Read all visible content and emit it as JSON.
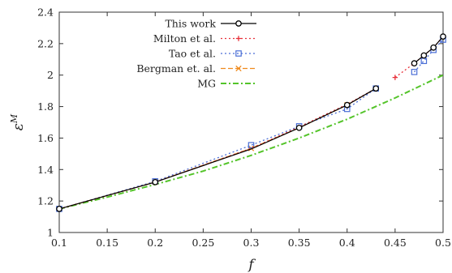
{
  "chart_data": {
    "type": "line",
    "xlabel": "f",
    "ylabel": "ε",
    "ylabel_sup": "M",
    "xlim": [
      0.1,
      0.5
    ],
    "ylim": [
      1.0,
      2.4
    ],
    "xticks": [
      0.1,
      0.15,
      0.2,
      0.25,
      0.3,
      0.35,
      0.4,
      0.45,
      0.5
    ],
    "xtick_labels": [
      "0.1",
      "0.15",
      "0.2",
      "0.25",
      "0.3",
      "0.35",
      "0.4",
      "0.45",
      "0.5"
    ],
    "yticks": [
      1.0,
      1.2,
      1.4,
      1.6,
      1.8,
      2.0,
      2.2,
      2.4
    ],
    "ytick_labels": [
      "1",
      "1.2",
      "1.4",
      "1.6",
      "1.8",
      "2",
      "2.2",
      "2.4"
    ],
    "grid": false,
    "legend_position": "top-left",
    "series": [
      {
        "name": "This work",
        "color": "#000000",
        "style": "solid",
        "marker": "circle",
        "segments": [
          [
            [
              0.1,
              1.15
            ],
            [
              0.2,
              1.32
            ],
            [
              0.3,
              1.53
            ],
            [
              0.35,
              1.665
            ],
            [
              0.4,
              1.81
            ],
            [
              0.43,
              1.915
            ]
          ],
          [
            [
              0.47,
              2.075
            ],
            [
              0.48,
              2.125
            ],
            [
              0.49,
              2.175
            ],
            [
              0.5,
              2.245
            ]
          ]
        ],
        "marker_points": [
          [
            0.1,
            1.15
          ],
          [
            0.2,
            1.32
          ],
          [
            0.35,
            1.665
          ],
          [
            0.4,
            1.81
          ],
          [
            0.43,
            1.915
          ],
          [
            0.47,
            2.075
          ],
          [
            0.48,
            2.125
          ],
          [
            0.49,
            2.175
          ],
          [
            0.5,
            2.245
          ]
        ]
      },
      {
        "name": "Milton et al.",
        "color": "#e8303a",
        "style": "dotted",
        "marker": "plus",
        "segments": [
          [
            [
              0.1,
              1.15
            ],
            [
              0.2,
              1.32
            ],
            [
              0.3,
              1.535
            ],
            [
              0.35,
              1.67
            ],
            [
              0.4,
              1.815
            ],
            [
              0.43,
              1.915
            ]
          ],
          [
            [
              0.45,
              1.985
            ],
            [
              0.47,
              2.075
            ],
            [
              0.48,
              2.125
            ],
            [
              0.49,
              2.175
            ],
            [
              0.5,
              2.245
            ]
          ]
        ],
        "marker_points": [
          [
            0.45,
            1.985
          ],
          [
            0.47,
            2.075
          ],
          [
            0.48,
            2.125
          ],
          [
            0.49,
            2.175
          ],
          [
            0.5,
            2.245
          ]
        ]
      },
      {
        "name": "Tao et al.",
        "color": "#4a6ed6",
        "style": "dotted",
        "marker": "square",
        "segments": [
          [
            [
              0.1,
              1.15
            ],
            [
              0.2,
              1.325
            ],
            [
              0.3,
              1.555
            ],
            [
              0.35,
              1.675
            ],
            [
              0.4,
              1.785
            ],
            [
              0.43,
              1.915
            ]
          ],
          [
            [
              0.47,
              2.02
            ],
            [
              0.48,
              2.09
            ],
            [
              0.49,
              2.16
            ],
            [
              0.5,
              2.225
            ]
          ]
        ],
        "marker_points": [
          [
            0.1,
            1.15
          ],
          [
            0.2,
            1.325
          ],
          [
            0.3,
            1.555
          ],
          [
            0.35,
            1.675
          ],
          [
            0.4,
            1.785
          ],
          [
            0.43,
            1.915
          ],
          [
            0.47,
            2.02
          ],
          [
            0.48,
            2.09
          ],
          [
            0.49,
            2.16
          ],
          [
            0.5,
            2.225
          ]
        ]
      },
      {
        "name": "Bergman et. al.",
        "color": "#f08a1c",
        "style": "dashed",
        "marker": "cross",
        "segments": [
          [
            [
              0.1,
              1.15
            ],
            [
              0.2,
              1.32
            ],
            [
              0.3,
              1.535
            ],
            [
              0.35,
              1.665
            ],
            [
              0.4,
              1.81
            ],
            [
              0.43,
              1.915
            ]
          ]
        ],
        "marker_points": [
          [
            0.1,
            1.15
          ],
          [
            0.2,
            1.32
          ],
          [
            0.3,
            1.535
          ],
          [
            0.4,
            1.81
          ],
          [
            0.43,
            1.915
          ]
        ]
      },
      {
        "name": "MG",
        "color": "#54c42a",
        "style": "dashdot",
        "marker": "none",
        "segments": [
          [
            [
              0.1,
              1.15
            ],
            [
              0.15,
              1.225
            ],
            [
              0.2,
              1.305
            ],
            [
              0.25,
              1.39
            ],
            [
              0.3,
              1.49
            ],
            [
              0.35,
              1.6
            ],
            [
              0.4,
              1.72
            ],
            [
              0.45,
              1.855
            ],
            [
              0.5,
              2.0
            ]
          ]
        ],
        "marker_points": []
      }
    ]
  }
}
